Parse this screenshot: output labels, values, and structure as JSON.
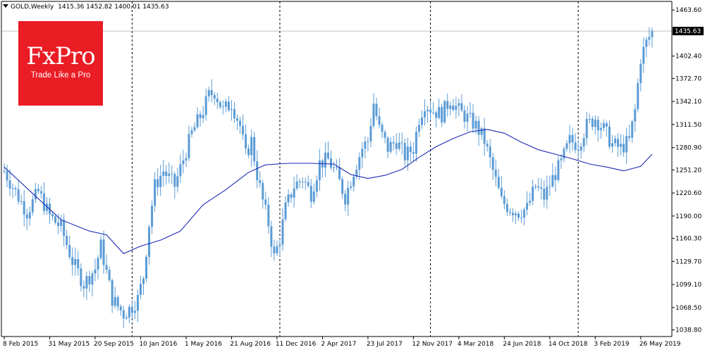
{
  "header": {
    "symbol": "GOLD,Weekly",
    "ohlc": "1415.36 1452.82 1400.01 1435.63"
  },
  "logo": {
    "brand": "FxPro",
    "tagline": "Trade Like a Pro"
  },
  "colors": {
    "candle": "#5b9bd5",
    "moving_average": "#1c2bb5",
    "separator": "#000000",
    "price_line": "#c0c0c0",
    "price_tag_bg": "#000000",
    "logo_bg": "#ea1c24"
  },
  "price_tag": "1435.63",
  "chart_data": {
    "type": "candlestick",
    "ylim": [
      1030,
      1475
    ],
    "y_ticks": [
      "1463.60",
      "1402.40",
      "1372.70",
      "1342.10",
      "1311.50",
      "1280.90",
      "1251.20",
      "1220.60",
      "1190.00",
      "1160.30",
      "1129.70",
      "1099.10",
      "1068.50",
      "1038.80"
    ],
    "y_tick_values": [
      1463.6,
      1402.4,
      1372.7,
      1342.1,
      1311.5,
      1280.9,
      1251.2,
      1220.6,
      1190.0,
      1160.3,
      1129.7,
      1099.1,
      1068.5,
      1038.8
    ],
    "x_ticks": [
      "8 Feb 2015",
      "31 May 2015",
      "20 Sep 2015",
      "10 Jan 2016",
      "1 May 2016",
      "21 Aug 2016",
      "11 Dec 2016",
      "2 Apr 2017",
      "23 Jul 2017",
      "12 Nov 2017",
      "4 Mar 2018",
      "24 Jun 2018",
      "14 Oct 2018",
      "3 Feb 2019",
      "26 May 2019"
    ],
    "x_tick_index": [
      0,
      16,
      32,
      48,
      64,
      80,
      96,
      112,
      128,
      144,
      160,
      176,
      192,
      208,
      224
    ],
    "separator_index": [
      45,
      97,
      150,
      202
    ],
    "current_price": 1435.63,
    "close_path": [
      [
        0,
        1250
      ],
      [
        5,
        1215
      ],
      [
        8,
        1195
      ],
      [
        12,
        1222
      ],
      [
        16,
        1190
      ],
      [
        20,
        1175
      ],
      [
        24,
        1130
      ],
      [
        28,
        1100
      ],
      [
        32,
        1120
      ],
      [
        34,
        1150
      ],
      [
        38,
        1080
      ],
      [
        42,
        1060
      ],
      [
        45,
        1070
      ],
      [
        47,
        1080
      ],
      [
        49,
        1110
      ],
      [
        51,
        1180
      ],
      [
        53,
        1230
      ],
      [
        56,
        1250
      ],
      [
        60,
        1230
      ],
      [
        63,
        1265
      ],
      [
        66,
        1300
      ],
      [
        70,
        1330
      ],
      [
        72,
        1350
      ],
      [
        74,
        1355
      ],
      [
        77,
        1330
      ],
      [
        80,
        1340
      ],
      [
        83,
        1310
      ],
      [
        85,
        1270
      ],
      [
        87,
        1290
      ],
      [
        89,
        1245
      ],
      [
        91,
        1210
      ],
      [
        93,
        1180
      ],
      [
        95,
        1135
      ],
      [
        97,
        1160
      ],
      [
        99,
        1200
      ],
      [
        102,
        1230
      ],
      [
        105,
        1240
      ],
      [
        108,
        1220
      ],
      [
        111,
        1260
      ],
      [
        114,
        1265
      ],
      [
        117,
        1245
      ],
      [
        120,
        1215
      ],
      [
        123,
        1250
      ],
      [
        126,
        1280
      ],
      [
        128,
        1290
      ],
      [
        130,
        1340
      ],
      [
        132,
        1305
      ],
      [
        135,
        1280
      ],
      [
        138,
        1290
      ],
      [
        141,
        1270
      ],
      [
        144,
        1280
      ],
      [
        146,
        1320
      ],
      [
        148,
        1340
      ],
      [
        151,
        1330
      ],
      [
        154,
        1325
      ],
      [
        157,
        1345
      ],
      [
        160,
        1330
      ],
      [
        163,
        1320
      ],
      [
        166,
        1310
      ],
      [
        169,
        1290
      ],
      [
        172,
        1250
      ],
      [
        175,
        1210
      ],
      [
        178,
        1200
      ],
      [
        181,
        1195
      ],
      [
        184,
        1200
      ],
      [
        187,
        1230
      ],
      [
        190,
        1215
      ],
      [
        193,
        1240
      ],
      [
        196,
        1260
      ],
      [
        199,
        1290
      ],
      [
        202,
        1285
      ],
      [
        205,
        1310
      ],
      [
        208,
        1320
      ],
      [
        211,
        1305
      ],
      [
        214,
        1285
      ],
      [
        217,
        1280
      ],
      [
        220,
        1290
      ],
      [
        222,
        1330
      ],
      [
        224,
        1400
      ],
      [
        226,
        1420
      ],
      [
        228,
        1435
      ]
    ],
    "moving_average": [
      [
        0,
        1255
      ],
      [
        10,
        1220
      ],
      [
        20,
        1185
      ],
      [
        30,
        1170
      ],
      [
        36,
        1165
      ],
      [
        42,
        1140
      ],
      [
        48,
        1150
      ],
      [
        55,
        1158
      ],
      [
        62,
        1170
      ],
      [
        70,
        1205
      ],
      [
        78,
        1225
      ],
      [
        86,
        1248
      ],
      [
        92,
        1258
      ],
      [
        100,
        1260
      ],
      [
        108,
        1260
      ],
      [
        116,
        1259
      ],
      [
        122,
        1245
      ],
      [
        128,
        1240
      ],
      [
        134,
        1244
      ],
      [
        140,
        1252
      ],
      [
        146,
        1268
      ],
      [
        152,
        1282
      ],
      [
        158,
        1293
      ],
      [
        164,
        1302
      ],
      [
        170,
        1305
      ],
      [
        176,
        1300
      ],
      [
        182,
        1288
      ],
      [
        188,
        1278
      ],
      [
        194,
        1272
      ],
      [
        200,
        1266
      ],
      [
        206,
        1259
      ],
      [
        212,
        1255
      ],
      [
        218,
        1250
      ],
      [
        224,
        1256
      ],
      [
        228,
        1272
      ]
    ]
  }
}
